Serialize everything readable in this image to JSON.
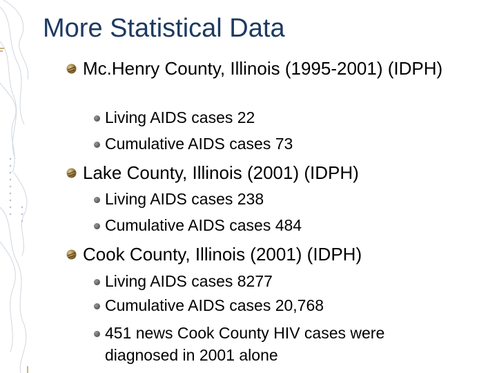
{
  "slide": {
    "title": "More Statistical Data",
    "sections": [
      {
        "heading": "Mc.Henry County, Illinois (1995-2001) (IDPH)",
        "items": [
          "Living AIDS cases 22",
          "Cumulative AIDS cases 73"
        ]
      },
      {
        "heading": "Lake County, Illinois (2001) (IDPH)",
        "items": [
          "Living AIDS cases 238",
          "Cumulative AIDS cases 484"
        ]
      },
      {
        "heading": "Cook County, Illinois (2001)  (IDPH)",
        "items": [
          "Living AIDS cases 8277",
          "Cumulative AIDS cases 20,768",
          "451 news Cook County HIV cases were diagnosed in 2001 alone"
        ]
      }
    ]
  },
  "colors": {
    "title": "#1d3a62",
    "decor_line": "#c9d3dc",
    "bullet_1": "#8a6a2a",
    "bullet_2": "#4a4a4a"
  }
}
